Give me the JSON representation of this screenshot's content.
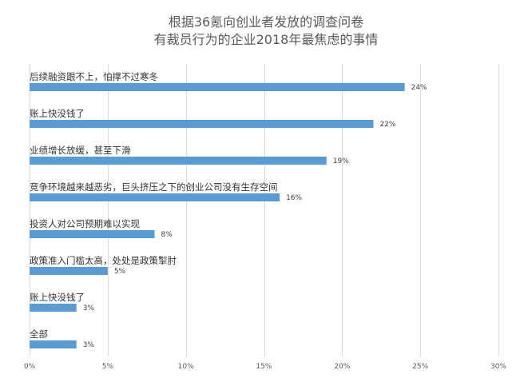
{
  "chart_data": {
    "type": "bar",
    "orientation": "horizontal",
    "title": [
      "根据36氪向创业者发放的调查问卷",
      "有裁员行为的企业2018年最焦虑的事情"
    ],
    "categories": [
      "后续融资跟不上，怕撑不过寒冬",
      "账上快没钱了",
      "业绩增长放缓，甚至下滑",
      "竞争环境越来越恶劣，巨头挤压之下的创业公司没有生存空间",
      "投资人对公司预期难以实现",
      "政策准入门槛太高，处处是政策掣肘",
      "账上快没钱了",
      "全部"
    ],
    "values": [
      24,
      22,
      19,
      16,
      8,
      5,
      3,
      3
    ],
    "value_labels": [
      "24%",
      "22%",
      "19%",
      "16%",
      "8%",
      "5%",
      "3%",
      "3%"
    ],
    "xlim": [
      0,
      30
    ],
    "xticks": [
      0,
      5,
      10,
      15,
      20,
      25,
      30
    ],
    "xtick_labels": [
      "0%",
      "5%",
      "10%",
      "15%",
      "20%",
      "25%",
      "30%"
    ],
    "grid": true,
    "bar_color": "#5b9bd5"
  }
}
